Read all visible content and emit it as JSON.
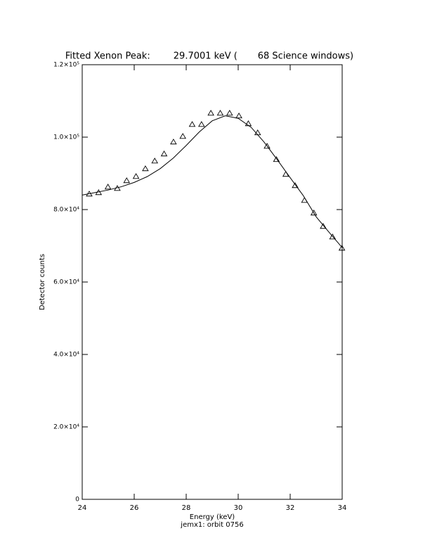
{
  "chart_data": {
    "type": "scatter",
    "title": "Fitted Xenon Peak:        29.7001 keV (       68 Science windows)",
    "subtitle": "jemx1: orbit 0756",
    "x_label": "Energy (keV)",
    "y_label": "Detector counts",
    "xlim": [
      24,
      34
    ],
    "xticks": [
      24,
      26,
      28,
      30,
      32,
      34
    ],
    "ylim": [
      0,
      120000
    ],
    "yticks": [
      0,
      {
        "value": 20000,
        "label": "2.0×10⁴"
      },
      {
        "value": 40000,
        "label": "4.0×10⁴"
      },
      {
        "value": 60000,
        "label": "6.0×10⁴"
      },
      {
        "value": 80000,
        "label": "8.0×10⁴"
      },
      {
        "value": 100000,
        "label": "1.0×10⁵"
      },
      {
        "value": 120000,
        "label": "1.2×10⁵"
      }
    ],
    "grid": false,
    "series": [
      {
        "color": "#000000",
        "marker": "triangle",
        "x": [
          24.27,
          24.63,
          24.99,
          25.35,
          25.71,
          26.07,
          26.43,
          26.79,
          27.15,
          27.51,
          27.87,
          28.23,
          28.59,
          28.95,
          29.31,
          29.67,
          30.03,
          30.39,
          30.75,
          31.11,
          31.47,
          31.83,
          32.19,
          32.55,
          32.91,
          33.27,
          33.63,
          33.99
        ],
        "values": [
          84280,
          84670,
          86220,
          85830,
          87970,
          89130,
          91270,
          93400,
          95350,
          98650,
          100200,
          103500,
          103500,
          106600,
          106600,
          106600,
          105840,
          103700,
          101180,
          97480,
          93800,
          89720,
          86610,
          82530,
          79040,
          75350,
          72430,
          69330
        ]
      },
      {
        "color": "#000000",
        "marker": "line",
        "x": [
          24,
          24.5,
          25,
          25.5,
          26,
          26.5,
          27,
          27.5,
          28,
          28.5,
          29,
          29.5,
          30,
          30.5,
          31,
          31.5,
          32,
          32.5,
          33,
          33.5,
          34
        ],
        "values": [
          84000,
          84700,
          85400,
          86300,
          87500,
          89100,
          91300,
          94200,
          97700,
          101400,
          104500,
          105900,
          105200,
          102700,
          98600,
          93800,
          88800,
          83900,
          78000,
          73700,
          69500
        ]
      }
    ]
  }
}
